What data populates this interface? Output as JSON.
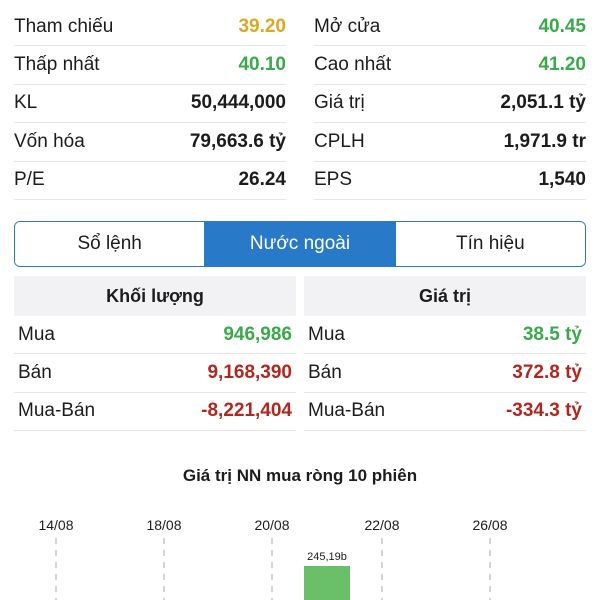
{
  "stats": [
    [
      {
        "label": "Tham chiếu",
        "value": "39.20",
        "color": "#d9a923"
      },
      {
        "label": "Mở cửa",
        "value": "40.45",
        "color": "#3aa94a"
      }
    ],
    [
      {
        "label": "Thấp nhất",
        "value": "40.10",
        "color": "#3aa94a"
      },
      {
        "label": "Cao nhất",
        "value": "41.20",
        "color": "#3aa94a"
      }
    ],
    [
      {
        "label": "KL",
        "value": "50,444,000",
        "color": "#1c1c1e"
      },
      {
        "label": "Giá trị",
        "value": "2,051.1 tỷ",
        "color": "#1c1c1e"
      }
    ],
    [
      {
        "label": "Vốn hóa",
        "value": "79,663.6 tỷ",
        "color": "#1c1c1e"
      },
      {
        "label": "CPLH",
        "value": "1,971.9 tr",
        "color": "#1c1c1e"
      }
    ],
    [
      {
        "label": "P/E",
        "value": "26.24",
        "color": "#1c1c1e"
      },
      {
        "label": "EPS",
        "value": "1,540",
        "color": "#1c1c1e"
      }
    ]
  ],
  "tabs": [
    {
      "label": "Sổ lệnh",
      "active": false
    },
    {
      "label": "Nước ngoài",
      "active": true
    },
    {
      "label": "Tín hiệu",
      "active": false
    }
  ],
  "volume": {
    "header": "Khối lượng",
    "rows": [
      {
        "label": "Mua",
        "value": "946,986",
        "color": "#3aa94a"
      },
      {
        "label": "Bán",
        "value": "9,168,390",
        "color": "#b3261e"
      },
      {
        "label": "Mua-Bán",
        "value": "-8,221,404",
        "color": "#b3261e"
      }
    ]
  },
  "value_table": {
    "header": "Giá trị",
    "rows": [
      {
        "label": "Mua",
        "value": "38.5 tỷ",
        "color": "#3aa94a"
      },
      {
        "label": "Bán",
        "value": "372.8 tỷ",
        "color": "#b3261e"
      },
      {
        "label": "Mua-Bán",
        "value": "-334.3 tỷ",
        "color": "#b3261e"
      }
    ]
  },
  "chart_title": "Giá trị NN mua ròng 10 phiên",
  "chart_data": {
    "type": "bar",
    "title": "Giá trị NN mua ròng 10 phiên",
    "x_tick_labels": [
      "14/08",
      "18/08",
      "20/08",
      "22/08",
      "26/08"
    ],
    "visible_bars": [
      {
        "label": "245,19b",
        "value": 245.19,
        "color": "#6abf69"
      }
    ],
    "grid": "vertical dashed"
  }
}
